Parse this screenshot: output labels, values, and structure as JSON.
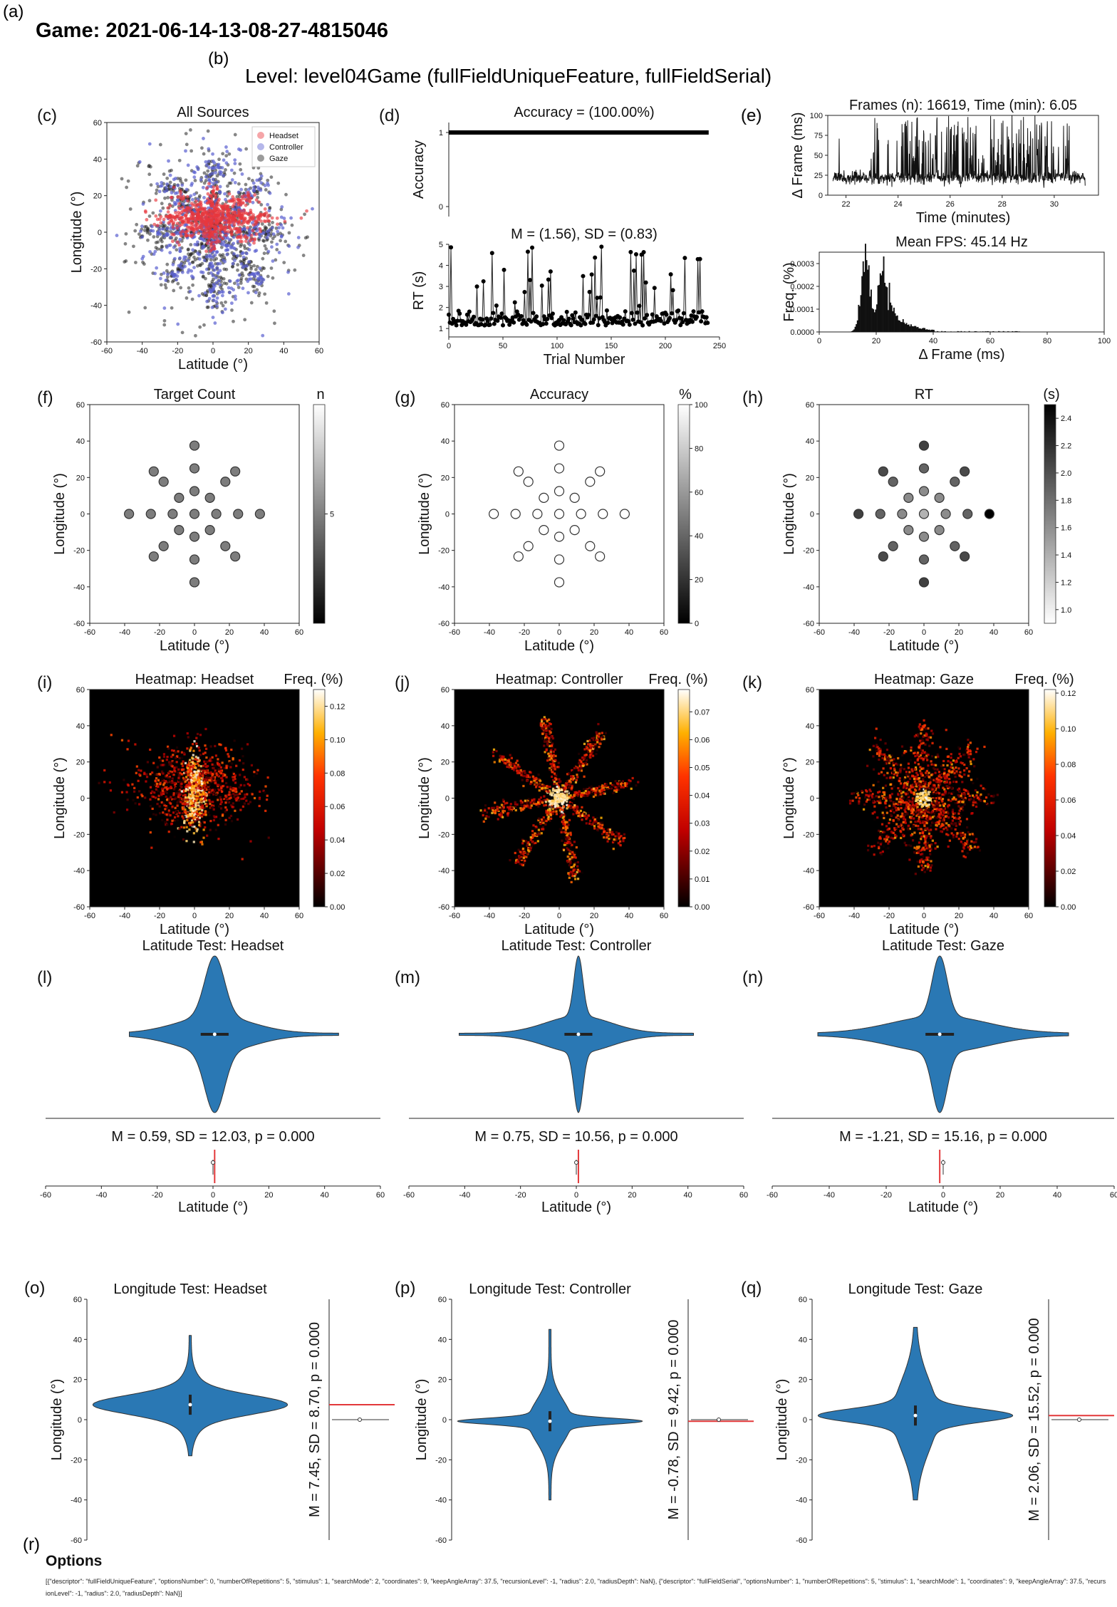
{
  "game_title": "Game: 2021-06-14-13-08-27-4815046",
  "level_title": "Level: level04Game (fullFieldUniqueFeature, fullFieldSerial)",
  "options": {
    "label": "(r)",
    "title": "Options",
    "text": "[{\"descriptor\": \"fullFieldUniqueFeature\", \"optionsNumber\": 0, \"numberOfRepetitions\": 5, \"stimulus\": 1, \"searchMode\": 2, \"coordinates\": 9, \"keepAngleArray\": 37.5, \"recursionLevel\": -1, \"radius\": 2.0, \"radiusDepth\": NaN}, {\"descriptor\": \"fullFieldSerial\", \"optionsNumber\": 1, \"numberOfRepetitions\": 5, \"stimulus\": 1, \"searchMode\": 1, \"coordinates\": 9, \"keepAngleArray\": 37.5, \"recursionLevel\": -1, \"radius\": 2.0, \"radiusDepth\": NaN}]"
  },
  "colors": {
    "headset": "#e8383d",
    "controller": "#5a5fd0",
    "gaze": "#222222",
    "violin": "#2a78b4",
    "red_line": "#e3383a"
  },
  "chart_data": [
    {
      "id": "c",
      "label": "(c)",
      "type": "scatter",
      "title": "All Sources",
      "xlabel": "Latitude (°)",
      "ylabel": "Longitude (°)",
      "xlim": [
        -60,
        60
      ],
      "ylim": [
        -60,
        60
      ],
      "xticks": [
        -60,
        -40,
        -20,
        0,
        20,
        40,
        60
      ],
      "yticks": [
        -60,
        -40,
        -20,
        0,
        20,
        40,
        60
      ],
      "legend": [
        "Headset",
        "Controller",
        "Gaze"
      ],
      "legend_loc": "top-right",
      "spread": {
        "headset": [
          28,
          14
        ],
        "controller": [
          36,
          40
        ],
        "gaze": [
          38,
          42
        ]
      }
    },
    {
      "id": "d1",
      "label": "(d)",
      "type": "line",
      "title": "Accuracy = (100.00%)",
      "ylabel": "Accuracy",
      "xlim": [
        0,
        250
      ],
      "ylim": [
        0,
        1
      ],
      "yticks": [
        0,
        1
      ],
      "x_range": [
        0,
        240
      ],
      "value": 1
    },
    {
      "id": "d2",
      "type": "line",
      "title": "M = (1.56), SD = (0.83)",
      "xlabel": "Trial Number",
      "ylabel": "RT (s)",
      "xlim": [
        0,
        250
      ],
      "ylim": [
        0.6,
        5
      ],
      "xticks": [
        0,
        50,
        100,
        150,
        200,
        250
      ],
      "yticks": [
        1,
        2,
        3,
        4,
        5
      ],
      "n_trials": 240,
      "mean": 1.56,
      "sd": 0.83
    },
    {
      "id": "e1",
      "label": "(e)",
      "type": "line",
      "title": "Frames (n): 16619, Time (min): 6.05",
      "xlabel": "Time (minutes)",
      "ylabel": "Δ Frame (ms)",
      "xlim": [
        21.3,
        31.7
      ],
      "ylim": [
        0,
        100
      ],
      "xticks": [
        22,
        24,
        26,
        28,
        30
      ],
      "yticks": [
        0,
        25,
        50,
        75,
        100
      ],
      "x_range": [
        21.5,
        31.2
      ],
      "baseline": 22
    },
    {
      "id": "e2",
      "type": "bar",
      "title": "Mean FPS: 45.14 Hz",
      "xlabel": "Δ Frame (ms)",
      "ylabel": "Freq. (%)",
      "xlim": [
        0,
        100
      ],
      "ylim": [
        0,
        0.00035
      ],
      "xticks": [
        0,
        20,
        40,
        60,
        80,
        100
      ],
      "yticks": [
        0.0,
        0.0001,
        0.0002,
        0.0003
      ],
      "ytick_labels": [
        "0.0000",
        "0.0001",
        "0.0002",
        "0.0003"
      ],
      "peaks": [
        {
          "center": 16,
          "height": 0.00033,
          "width": 2.2
        },
        {
          "center": 22,
          "height": 0.0003,
          "width": 2.0
        }
      ]
    },
    {
      "id": "f",
      "label": "(f)",
      "type": "scatter",
      "title": "Target Count",
      "xlabel": "Latitude (°)",
      "ylabel": "Longitude (°)",
      "xlim": [
        -60,
        60
      ],
      "ylim": [
        -60,
        60
      ],
      "xticks": [
        -60,
        -40,
        -20,
        0,
        20,
        40,
        60
      ],
      "yticks": [
        -60,
        -40,
        -20,
        0,
        20,
        40,
        60
      ],
      "colorbar": {
        "label": "n",
        "range": [
          4,
          6
        ],
        "ticks": [
          5
        ]
      }
    },
    {
      "id": "g",
      "label": "(g)",
      "type": "scatter",
      "title": "Accuracy",
      "xlabel": "Latitude (°)",
      "ylabel": "Longitude (°)",
      "xlim": [
        -60,
        60
      ],
      "ylim": [
        -60,
        60
      ],
      "xticks": [
        -60,
        -40,
        -20,
        0,
        20,
        40,
        60
      ],
      "yticks": [
        -60,
        -40,
        -20,
        0,
        20,
        40,
        60
      ],
      "colorbar": {
        "label": "%",
        "range": [
          0,
          100
        ],
        "ticks": [
          0,
          20,
          40,
          60,
          80,
          100
        ]
      }
    },
    {
      "id": "h",
      "label": "(h)",
      "type": "scatter",
      "title": "RT",
      "xlabel": "Latitude (°)",
      "ylabel": "Longitude (°)",
      "xlim": [
        -60,
        60
      ],
      "ylim": [
        -60,
        60
      ],
      "xticks": [
        -60,
        -40,
        -20,
        0,
        20,
        40,
        60
      ],
      "yticks": [
        -60,
        -40,
        -20,
        0,
        20,
        40,
        60
      ],
      "colorbar": {
        "label": "(s)",
        "range": [
          0.9,
          2.5
        ],
        "ticks": [
          1.0,
          1.2,
          1.4,
          1.6,
          1.8,
          2.0,
          2.2,
          2.4
        ]
      }
    },
    {
      "id": "i",
      "label": "(i)",
      "type": "heatmap",
      "title": "Heatmap: Headset",
      "xlabel": "Latitude (°)",
      "ylabel": "Longitude (°)",
      "xlim": [
        -60,
        60
      ],
      "ylim": [
        -60,
        60
      ],
      "xticks": [
        -60,
        -40,
        -20,
        0,
        20,
        40,
        60
      ],
      "yticks": [
        -60,
        -40,
        -20,
        0,
        20,
        40,
        60
      ],
      "colorbar": {
        "label": "Freq. (%)",
        "range": [
          0,
          0.13
        ],
        "ticks": [
          0.0,
          0.02,
          0.04,
          0.06,
          0.08,
          0.1,
          0.12
        ]
      },
      "pattern": "blob"
    },
    {
      "id": "j",
      "label": "(j)",
      "type": "heatmap",
      "title": "Heatmap: Controller",
      "xlabel": "Latitude (°)",
      "ylabel": "Longitude (°)",
      "xlim": [
        -60,
        60
      ],
      "ylim": [
        -60,
        60
      ],
      "xticks": [
        -60,
        -40,
        -20,
        0,
        20,
        40,
        60
      ],
      "yticks": [
        -60,
        -40,
        -20,
        0,
        20,
        40,
        60
      ],
      "colorbar": {
        "label": "Freq. (%)",
        "range": [
          0,
          0.078
        ],
        "ticks": [
          0.0,
          0.01,
          0.02,
          0.03,
          0.04,
          0.05,
          0.06,
          0.07
        ]
      },
      "pattern": "rays"
    },
    {
      "id": "k",
      "label": "(k)",
      "type": "heatmap",
      "title": "Heatmap: Gaze",
      "xlabel": "Latitude (°)",
      "ylabel": "Longitude (°)",
      "xlim": [
        -60,
        60
      ],
      "ylim": [
        -60,
        60
      ],
      "xticks": [
        -60,
        -40,
        -20,
        0,
        20,
        40,
        60
      ],
      "yticks": [
        -60,
        -40,
        -20,
        0,
        20,
        40,
        60
      ],
      "colorbar": {
        "label": "Freq. (%)",
        "range": [
          0,
          0.122
        ],
        "ticks": [
          0.0,
          0.02,
          0.04,
          0.06,
          0.08,
          0.1,
          0.12
        ]
      },
      "pattern": "star"
    },
    {
      "id": "l",
      "label": "(l)",
      "type": "violin",
      "title": "Latitude Test: Headset",
      "stats": "M = 0.59, SD = 12.03, p = 0.000",
      "xlabel": "Latitude (°)",
      "xlim": [
        -60,
        60
      ],
      "xticks": [
        -60,
        -40,
        -20,
        0,
        20,
        40,
        60
      ],
      "range": [
        -30,
        45
      ],
      "mean": 0.59,
      "sd": 12.03,
      "peak_sd": 3.5
    },
    {
      "id": "m",
      "label": "(m)",
      "type": "violin",
      "title": "Latitude Test: Controller",
      "stats": "M = 0.75, SD = 10.56, p = 0.000",
      "xlabel": "Latitude (°)",
      "xlim": [
        -60,
        60
      ],
      "xticks": [
        -60,
        -40,
        -20,
        0,
        20,
        40,
        60
      ],
      "range": [
        -42,
        42
      ],
      "mean": 0.75,
      "sd": 10.56,
      "peak_sd": 1.6
    },
    {
      "id": "n",
      "label": "(n)",
      "type": "violin",
      "title": "Latitude Test: Gaze",
      "stats": "M = -1.21, SD = 15.16, p = 0.000",
      "xlabel": "Latitude (°)",
      "xlim": [
        -60,
        60
      ],
      "xticks": [
        -60,
        -40,
        -20,
        0,
        20,
        40,
        60
      ],
      "range": [
        -44,
        44
      ],
      "mean": -1.21,
      "sd": 15.16,
      "peak_sd": 2.6
    },
    {
      "id": "o",
      "label": "(o)",
      "type": "violin",
      "title": "Longitude Test: Headset",
      "stats": "M = 7.45, SD = 8.70, p = 0.000",
      "ylabel": "Longitude (°)",
      "ylim": [
        -60,
        60
      ],
      "yticks": [
        -60,
        -40,
        -20,
        0,
        20,
        40,
        60
      ],
      "range": [
        -18,
        42
      ],
      "mean": 7.45,
      "sd": 8.7,
      "peak_sd": 4.5
    },
    {
      "id": "p",
      "label": "(p)",
      "type": "violin",
      "title": "Longitude Test: Controller",
      "stats": "M = -0.78, SD = 9.42, p = 0.000",
      "ylabel": "Longitude (°)",
      "ylim": [
        -60,
        60
      ],
      "yticks": [
        -60,
        -40,
        -20,
        0,
        20,
        40,
        60
      ],
      "range": [
        -40,
        45
      ],
      "mean": -0.78,
      "sd": 9.42,
      "peak_sd": 1.5
    },
    {
      "id": "q",
      "label": "(q)",
      "type": "violin",
      "title": "Longitude Test: Gaze",
      "stats": "M = 2.06, SD = 15.52, p = 0.000",
      "ylabel": "Longitude (°)",
      "ylim": [
        -60,
        60
      ],
      "yticks": [
        -60,
        -40,
        -20,
        0,
        20,
        40,
        60
      ],
      "range": [
        -40,
        46
      ],
      "mean": 2.06,
      "sd": 15.52,
      "peak_sd": 3.2
    }
  ]
}
